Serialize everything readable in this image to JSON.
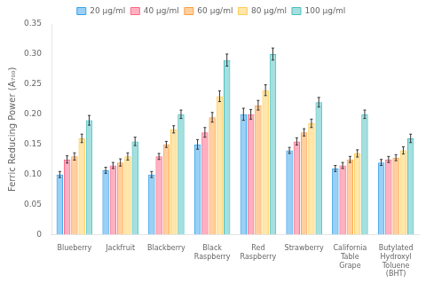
{
  "chart_data": {
    "type": "bar",
    "ylabel": "Ferric Reducing Power (A₇₀₀)",
    "categories": [
      "Blueberry",
      "Jackfruit",
      "Blackberry",
      "Black\nRaspberry",
      "Red\nRaspberry",
      "Strawberry",
      "California\nTable\nGrape",
      "Butylated\nHydroxyl\nToluene\n(BHT)"
    ],
    "series": [
      {
        "name": "20 μg/ml",
        "values": [
          0.1,
          0.107,
          0.1,
          0.15,
          0.2,
          0.14,
          0.11,
          0.12
        ],
        "errors": [
          0.005,
          0.005,
          0.005,
          0.008,
          0.01,
          0.005,
          0.005,
          0.005
        ]
      },
      {
        "name": "40 μg/ml",
        "values": [
          0.125,
          0.115,
          0.13,
          0.17,
          0.2,
          0.155,
          0.115,
          0.125
        ],
        "errors": [
          0.006,
          0.005,
          0.005,
          0.008,
          0.008,
          0.006,
          0.005,
          0.005
        ]
      },
      {
        "name": "60 μg/ml",
        "values": [
          0.13,
          0.12,
          0.15,
          0.195,
          0.215,
          0.17,
          0.125,
          0.128
        ],
        "errors": [
          0.006,
          0.006,
          0.005,
          0.008,
          0.008,
          0.006,
          0.005,
          0.005
        ]
      },
      {
        "name": "80 μg/ml",
        "values": [
          0.16,
          0.13,
          0.175,
          0.23,
          0.24,
          0.185,
          0.135,
          0.14
        ],
        "errors": [
          0.007,
          0.006,
          0.006,
          0.009,
          0.009,
          0.007,
          0.006,
          0.006
        ]
      },
      {
        "name": "100 μg/ml",
        "values": [
          0.19,
          0.155,
          0.2,
          0.29,
          0.3,
          0.22,
          0.2,
          0.16
        ],
        "errors": [
          0.008,
          0.007,
          0.007,
          0.01,
          0.01,
          0.008,
          0.007,
          0.007
        ]
      }
    ],
    "ylim": [
      0,
      0.35
    ],
    "yticks": [
      0,
      0.05,
      {
        "value": 0.1,
        "label": "0.10"
      },
      0.15,
      {
        "value": 0.2,
        "label": "0.20"
      },
      0.25,
      {
        "value": 0.3,
        "label": "0.30"
      },
      0.35
    ],
    "grid": false,
    "legend": "top"
  }
}
